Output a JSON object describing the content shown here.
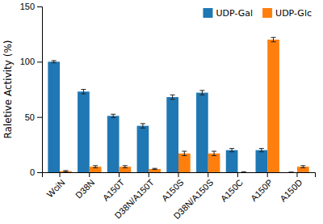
{
  "chart_data": {
    "type": "bar",
    "categories": [
      "WciN",
      "D38N",
      "A150T",
      "D38N/A150T",
      "A150S",
      "D38N/A150S",
      "A150C",
      "A150P",
      "A150D"
    ],
    "series": [
      {
        "name": "UDP-Gal",
        "values": [
          100,
          73,
          51,
          42,
          68,
          72,
          20,
          20,
          0
        ],
        "errors": [
          1,
          2,
          1.5,
          2,
          2,
          2,
          1.5,
          1.5,
          0
        ]
      },
      {
        "name": "UDP-Glc",
        "values": [
          1,
          5,
          5,
          3,
          17,
          17,
          0,
          120,
          5
        ],
        "errors": [
          0.5,
          1,
          1,
          0.5,
          2,
          2,
          0.5,
          2,
          1
        ]
      }
    ],
    "ylabel": "Raletive Activity (%)",
    "ylim": [
      0,
      150
    ],
    "yticks": [
      0,
      50,
      100,
      150
    ],
    "legend": "upper right"
  }
}
